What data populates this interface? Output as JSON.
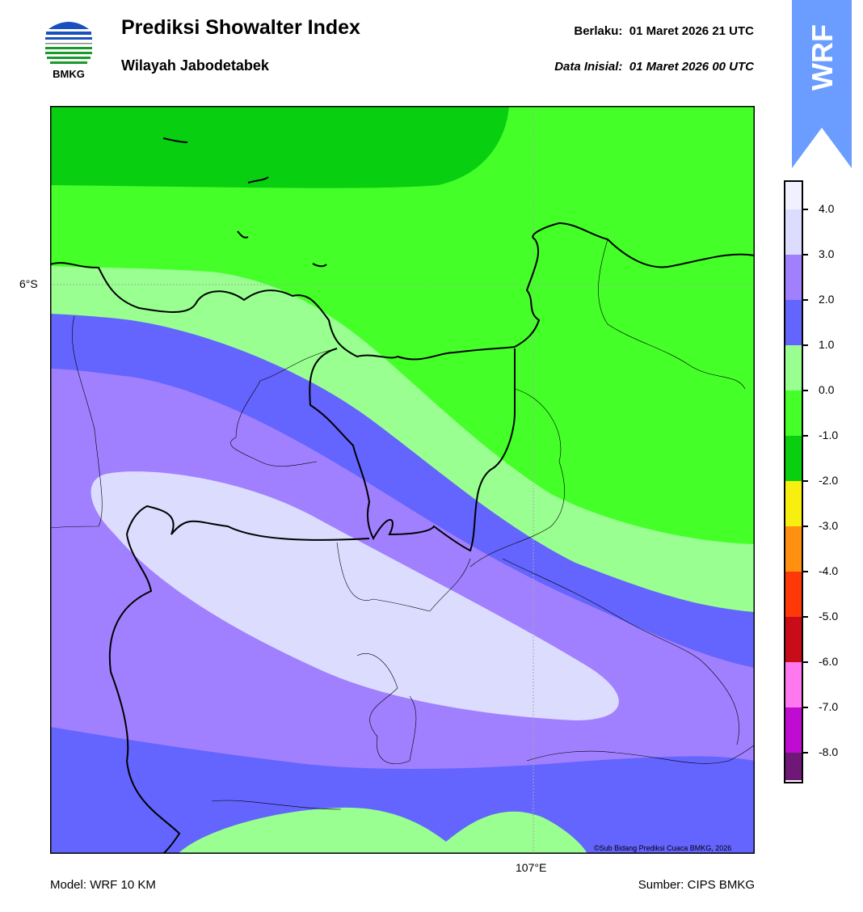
{
  "header": {
    "title": "Prediksi Showalter Index",
    "subtitle": "Wilayah Jabodetabek",
    "valid_label": "Berlaku:",
    "valid_time": "01 Maret 2026 21 UTC",
    "init_label": "Data Inisial:",
    "init_time": "01 Maret 2026 00 UTC",
    "logo_text": "BMKG",
    "badge": "WRF"
  },
  "map": {
    "lat_label": "6°S",
    "lon_label": "107°E",
    "credit": "©Sub Bidang Prediksi Cuaca BMKG, 2026"
  },
  "colorbar": {
    "ticks": [
      "4.0",
      "3.0",
      "2.0",
      "1.0",
      "0.0",
      "-1.0",
      "-2.0",
      "-3.0",
      "-4.0",
      "-5.0",
      "-6.0",
      "-7.0",
      "-8.0"
    ],
    "colors": [
      "#f0f0ff",
      "#dcdcff",
      "#a080ff",
      "#6464ff",
      "#98ff90",
      "#44ff28",
      "#08d010",
      "#f8ee10",
      "#ff9010",
      "#ff3808",
      "#c80c18",
      "#ff78f0",
      "#c00cd0",
      "#701878"
    ]
  },
  "footer": {
    "model": "Model: WRF 10 KM",
    "source": "Sumber: CIPS BMKG"
  }
}
